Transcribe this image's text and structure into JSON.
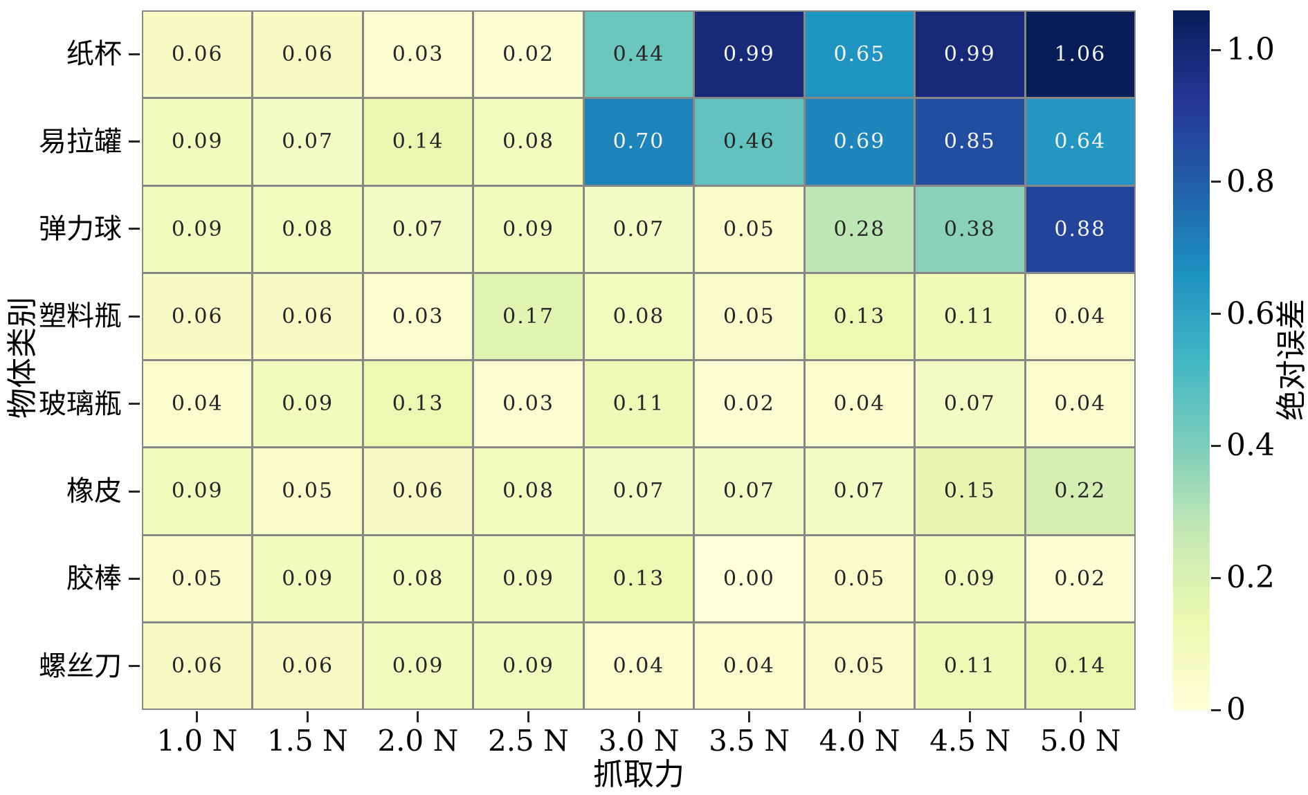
{
  "chart_data": {
    "type": "heatmap",
    "xlabel": "抓取力",
    "ylabel": "物体类别",
    "x_categories": [
      "1.0 N",
      "1.5 N",
      "2.0 N",
      "2.5 N",
      "3.0 N",
      "3.5 N",
      "4.0 N",
      "4.5 N",
      "5.0 N"
    ],
    "y_categories": [
      "纸杯",
      "易拉罐",
      "弹力球",
      "塑料瓶",
      "玻璃瓶",
      "橡皮",
      "胶棒",
      "螺丝刀"
    ],
    "values": [
      [
        0.06,
        0.06,
        0.03,
        0.02,
        0.44,
        0.99,
        0.65,
        0.99,
        1.06
      ],
      [
        0.09,
        0.07,
        0.14,
        0.08,
        0.7,
        0.46,
        0.69,
        0.85,
        0.64
      ],
      [
        0.09,
        0.08,
        0.07,
        0.09,
        0.07,
        0.05,
        0.28,
        0.38,
        0.88
      ],
      [
        0.06,
        0.06,
        0.03,
        0.17,
        0.08,
        0.05,
        0.13,
        0.11,
        0.04
      ],
      [
        0.04,
        0.09,
        0.13,
        0.03,
        0.11,
        0.02,
        0.04,
        0.07,
        0.04
      ],
      [
        0.09,
        0.05,
        0.06,
        0.08,
        0.07,
        0.07,
        0.07,
        0.15,
        0.22
      ],
      [
        0.05,
        0.09,
        0.08,
        0.09,
        0.13,
        0.0,
        0.05,
        0.09,
        0.02
      ],
      [
        0.06,
        0.06,
        0.09,
        0.09,
        0.04,
        0.04,
        0.05,
        0.11,
        0.14
      ]
    ],
    "vmin": 0,
    "vmax": 1.06,
    "grid": true,
    "legend_position": "right-colorbar",
    "colorbar": {
      "label": "绝对误差",
      "ticks": [
        0,
        0.2,
        0.4,
        0.6,
        0.8,
        1.0
      ],
      "tick_labels": [
        "0",
        "0.2",
        "0.4",
        "0.6",
        "0.8",
        "1.0"
      ]
    },
    "colors": {
      "colormap_name": "YlGnBu",
      "colormap_stops": [
        "#ffffd9",
        "#edf8b1",
        "#c7e9b4",
        "#7fcdbb",
        "#41b6c4",
        "#1d91c0",
        "#225ea8",
        "#253494",
        "#081d58"
      ],
      "grid_line": "#878787",
      "annot_dark": "#262626",
      "annot_light": "#f2f7f5",
      "background": "#ffffff"
    }
  }
}
